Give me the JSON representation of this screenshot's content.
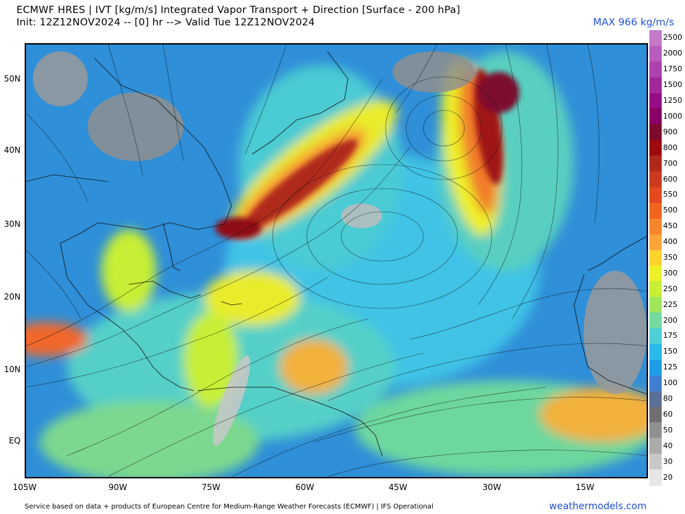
{
  "header": {
    "title_line1": "ECMWF HRES | IVT [kg/m/s] Integrated Vapor Transport + Direction [Surface - 200 hPa]",
    "title_line2": "Init: 12Z12NOV2024 -- [0] hr --> Valid Tue 12Z12NOV2024",
    "max_label": "MAX 966 kg/m/s"
  },
  "map": {
    "latitude_labels": [
      "50N",
      "40N",
      "30N",
      "20N",
      "10N",
      "EQ"
    ],
    "longitude_labels": [
      "105W",
      "90W",
      "75W",
      "60W",
      "45W",
      "30W",
      "15W"
    ],
    "base_color": "#2f8fd8"
  },
  "colorbar": {
    "levels": [
      {
        "label": "2500",
        "color": "#c27ac9"
      },
      {
        "label": "2000",
        "color": "#b85dbd"
      },
      {
        "label": "1750",
        "color": "#ad42ac"
      },
      {
        "label": "1500",
        "color": "#a1279a"
      },
      {
        "label": "1250",
        "color": "#960e85"
      },
      {
        "label": "1000",
        "color": "#8a0068"
      },
      {
        "label": "900",
        "color": "#7d0a2e"
      },
      {
        "label": "800",
        "color": "#9c0a10"
      },
      {
        "label": "700",
        "color": "#b0291b"
      },
      {
        "label": "600",
        "color": "#cb3a1f"
      },
      {
        "label": "550",
        "color": "#e3491f"
      },
      {
        "label": "500",
        "color": "#f0641d"
      },
      {
        "label": "450",
        "color": "#f7852b"
      },
      {
        "label": "400",
        "color": "#fba43a"
      },
      {
        "label": "350",
        "color": "#fcd22d"
      },
      {
        "label": "300",
        "color": "#eef028"
      },
      {
        "label": "250",
        "color": "#c8ef34"
      },
      {
        "label": "225",
        "color": "#9fe65b"
      },
      {
        "label": "200",
        "color": "#73dba0"
      },
      {
        "label": "175",
        "color": "#4fd0d9"
      },
      {
        "label": "150",
        "color": "#2cb9ec"
      },
      {
        "label": "125",
        "color": "#1f9de6"
      },
      {
        "label": "100",
        "color": "#3e7fd2"
      },
      {
        "label": "80",
        "color": "#5a6f95"
      },
      {
        "label": "60",
        "color": "#6f6f6f"
      },
      {
        "label": "50",
        "color": "#909090"
      },
      {
        "label": "40",
        "color": "#ababab"
      },
      {
        "label": "30",
        "color": "#c8c8c8"
      },
      {
        "label": "20",
        "color": "#e6e6e6"
      }
    ]
  },
  "footer": {
    "credit": "Service based on data + products of European Centre for Medium-Range Weather Forecasts (ECMWF) | IFS Operational",
    "site": "weathermodels.com"
  }
}
